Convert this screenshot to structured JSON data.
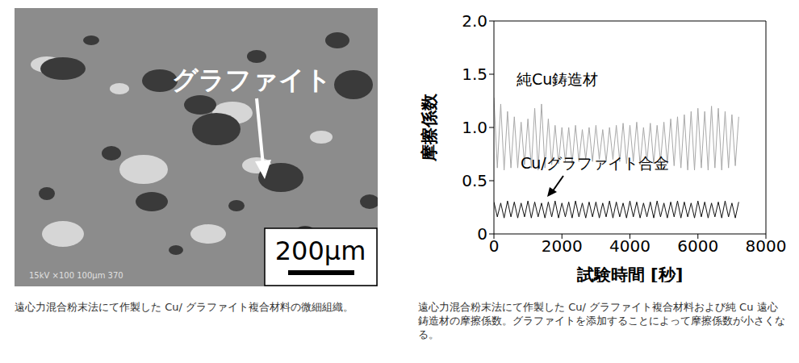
{
  "left_panel": {
    "image_label": "グラファイト",
    "scale_bar": "200μm",
    "sem_info": "15kV  ×100  100μm  370",
    "caption": "遠心力混合粉末法にて作製した Cu/ グラファイト複合材料の微細組織。"
  },
  "chart_data": {
    "type": "line",
    "x_label": "試験時間 [秒]",
    "y_label": "摩擦係数",
    "x": [
      0,
      100,
      200,
      300,
      400,
      500,
      600,
      700,
      800,
      900,
      1000,
      1100,
      1200,
      1300,
      1400,
      1500,
      1600,
      1700,
      1800,
      1900,
      2000,
      2100,
      2200,
      2300,
      2400,
      2500,
      2600,
      2700,
      2800,
      2900,
      3000,
      3100,
      3200,
      3300,
      3400,
      3500,
      3600,
      3700,
      3800,
      3900,
      4000,
      4100,
      4200,
      4300,
      4400,
      4500,
      4600,
      4700,
      4800,
      4900,
      5000,
      5100,
      5200,
      5300,
      5400,
      5500,
      5600,
      5700,
      5800,
      5900,
      6000,
      6100,
      6200,
      6300,
      6400,
      6500,
      6600,
      6700,
      6800,
      6900,
      7000,
      7100,
      7200
    ],
    "series": [
      {
        "name": "純Cu鋳造材",
        "color": "#a8a8a8",
        "values": [
          1.28,
          0.62,
          1.22,
          0.6,
          1.15,
          0.62,
          1.1,
          0.62,
          1.05,
          0.65,
          1.08,
          0.62,
          1.18,
          0.6,
          1.22,
          0.62,
          1.08,
          0.65,
          1.02,
          0.66,
          1.0,
          0.68,
          1.0,
          0.66,
          1.02,
          0.68,
          0.98,
          0.7,
          1.0,
          0.68,
          1.02,
          0.7,
          0.98,
          0.68,
          1.0,
          0.7,
          1.02,
          0.68,
          1.04,
          0.66,
          1.02,
          0.68,
          1.05,
          0.65,
          1.0,
          0.68,
          1.04,
          0.66,
          1.02,
          0.68,
          1.05,
          0.66,
          1.08,
          0.64,
          1.1,
          0.62,
          1.12,
          0.6,
          1.15,
          0.6,
          1.18,
          0.62,
          1.15,
          0.6,
          1.2,
          0.62,
          1.18,
          0.6,
          1.15,
          0.62,
          1.12,
          0.64,
          1.1
        ]
      },
      {
        "name": "Cu/グラファイト合金",
        "color": "#111111",
        "values": [
          0.3,
          0.16,
          0.29,
          0.15,
          0.31,
          0.16,
          0.3,
          0.15,
          0.29,
          0.16,
          0.31,
          0.15,
          0.3,
          0.16,
          0.29,
          0.15,
          0.3,
          0.16,
          0.31,
          0.15,
          0.29,
          0.16,
          0.3,
          0.15,
          0.31,
          0.16,
          0.29,
          0.15,
          0.3,
          0.16,
          0.3,
          0.15,
          0.29,
          0.16,
          0.31,
          0.15,
          0.3,
          0.16,
          0.29,
          0.15,
          0.31,
          0.16,
          0.3,
          0.15,
          0.29,
          0.16,
          0.3,
          0.15,
          0.31,
          0.16,
          0.29,
          0.15,
          0.3,
          0.16,
          0.31,
          0.15,
          0.3,
          0.16,
          0.29,
          0.15,
          0.31,
          0.16,
          0.3,
          0.15,
          0.29,
          0.16,
          0.3,
          0.15,
          0.31,
          0.16,
          0.29,
          0.15,
          0.3
        ]
      }
    ],
    "xlim": [
      0,
      8000
    ],
    "xticks": [
      0,
      2000,
      4000,
      6000,
      8000
    ],
    "ylim": [
      0,
      2
    ],
    "yticks": [
      0,
      0.5,
      {
        "value": 1,
        "label": "1.0"
      },
      1.5,
      {
        "value": 2,
        "label": "2.0"
      }
    ]
  },
  "right_caption": "遠心力混合粉末法にて作製した Cu/ グラファイト複合材料および純 Cu 遠心鋳造材の摩擦係数。グラファイトを添加することによって摩擦係数が小さくなる。"
}
